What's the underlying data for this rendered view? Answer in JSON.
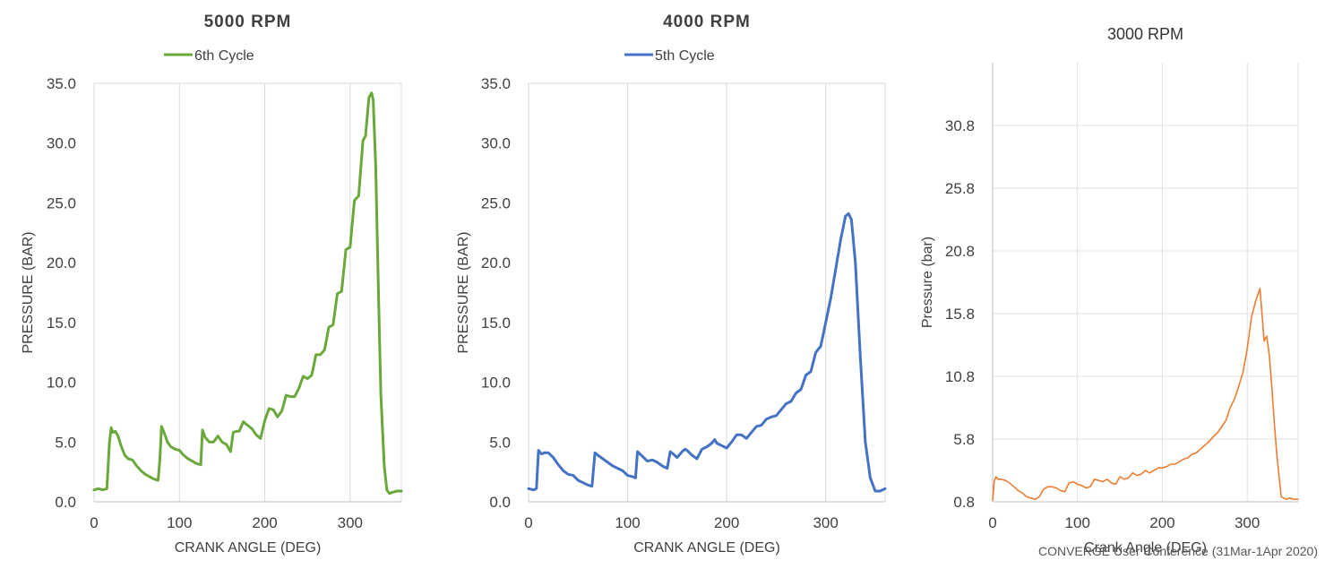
{
  "chart_data": [
    {
      "type": "line",
      "title": "5000 RPM",
      "xlabel": "CRANK ANGLE (DEG)",
      "ylabel": "PRESSURE (BAR)",
      "xlim": [
        0,
        360
      ],
      "ylim": [
        0,
        35
      ],
      "xticks": [
        0,
        100,
        200,
        300
      ],
      "xtick_labels": [
        "0",
        "100",
        "200",
        "300"
      ],
      "yticks": [
        0,
        5,
        10,
        15,
        20,
        25,
        30,
        35
      ],
      "ytick_labels": [
        "0.0",
        "5.0",
        "10.0",
        "15.0",
        "20.0",
        "25.0",
        "30.0",
        "35.0"
      ],
      "grid": "vertical",
      "legend": "top-center",
      "series": [
        {
          "name": "6th Cycle",
          "color": "#6aa83c",
          "x": [
            0,
            5,
            10,
            15,
            18,
            20,
            22,
            25,
            28,
            32,
            36,
            40,
            45,
            50,
            55,
            60,
            65,
            70,
            75,
            77,
            79,
            82,
            86,
            90,
            95,
            100,
            105,
            110,
            115,
            120,
            125,
            127,
            130,
            135,
            140,
            145,
            150,
            155,
            160,
            163,
            167,
            170,
            175,
            178,
            180,
            185,
            190,
            195,
            200,
            205,
            210,
            215,
            220,
            225,
            230,
            235,
            240,
            245,
            250,
            255,
            260,
            265,
            270,
            275,
            280,
            285,
            290,
            295,
            300,
            305,
            310,
            315,
            318,
            322,
            325,
            327,
            330,
            333,
            336,
            340,
            343,
            346,
            350,
            355,
            360
          ],
          "y": [
            1.0,
            1.1,
            1.0,
            1.1,
            5.0,
            6.2,
            5.8,
            5.9,
            5.5,
            4.6,
            3.9,
            3.6,
            3.5,
            3.0,
            2.6,
            2.3,
            2.1,
            1.9,
            1.8,
            3.5,
            6.3,
            5.8,
            5.0,
            4.6,
            4.4,
            4.3,
            3.9,
            3.6,
            3.4,
            3.2,
            3.1,
            6.0,
            5.4,
            5.0,
            5.0,
            5.5,
            5.0,
            4.8,
            4.2,
            5.8,
            5.9,
            5.9,
            6.7,
            6.5,
            6.4,
            6.1,
            5.6,
            5.3,
            6.8,
            7.8,
            7.7,
            7.1,
            7.6,
            8.9,
            8.8,
            8.8,
            9.5,
            10.5,
            10.3,
            10.6,
            12.3,
            12.3,
            12.7,
            14.6,
            14.8,
            17.4,
            17.6,
            21.1,
            21.3,
            25.2,
            25.6,
            30.2,
            30.6,
            33.8,
            34.2,
            33.6,
            28.0,
            18.0,
            9.0,
            3.0,
            1.0,
            0.7,
            0.8,
            0.9,
            0.9
          ]
        }
      ]
    },
    {
      "type": "line",
      "title": "4000 RPM",
      "xlabel": "CRANK ANGLE (DEG)",
      "ylabel": "PRESSURE (BAR)",
      "xlim": [
        0,
        360
      ],
      "ylim": [
        0,
        35
      ],
      "xticks": [
        0,
        100,
        200,
        300
      ],
      "xtick_labels": [
        "0",
        "100",
        "200",
        "300"
      ],
      "yticks": [
        0,
        5,
        10,
        15,
        20,
        25,
        30,
        35
      ],
      "ytick_labels": [
        "0.0",
        "5.0",
        "10.0",
        "15.0",
        "20.0",
        "25.0",
        "30.0",
        "35.0"
      ],
      "grid": "vertical",
      "legend": "top-center",
      "series": [
        {
          "name": "5th Cycle",
          "color": "#4472c4",
          "x": [
            0,
            5,
            8,
            10,
            13,
            16,
            20,
            25,
            30,
            35,
            40,
            45,
            50,
            55,
            60,
            64,
            67,
            70,
            75,
            80,
            85,
            90,
            95,
            100,
            105,
            108,
            110,
            115,
            120,
            125,
            130,
            135,
            140,
            143,
            146,
            150,
            155,
            158,
            160,
            165,
            170,
            175,
            180,
            185,
            188,
            190,
            195,
            200,
            205,
            210,
            215,
            220,
            225,
            230,
            235,
            240,
            245,
            250,
            255,
            260,
            265,
            270,
            275,
            280,
            285,
            290,
            295,
            300,
            305,
            310,
            315,
            320,
            323,
            326,
            330,
            335,
            340,
            345,
            350,
            355,
            360
          ],
          "y": [
            1.1,
            1.0,
            1.1,
            4.3,
            4.0,
            4.1,
            4.1,
            3.7,
            3.1,
            2.6,
            2.3,
            2.2,
            1.8,
            1.6,
            1.4,
            1.3,
            4.1,
            3.9,
            3.6,
            3.3,
            3.0,
            2.8,
            2.6,
            2.2,
            2.1,
            2.0,
            4.2,
            3.8,
            3.4,
            3.5,
            3.3,
            3.0,
            2.8,
            4.2,
            4.0,
            3.7,
            4.2,
            4.4,
            4.3,
            3.9,
            3.6,
            4.4,
            4.6,
            4.9,
            5.2,
            4.9,
            4.7,
            4.5,
            5.0,
            5.6,
            5.6,
            5.3,
            5.8,
            6.3,
            6.4,
            6.9,
            7.1,
            7.2,
            7.7,
            8.2,
            8.4,
            9.1,
            9.4,
            10.6,
            10.9,
            12.5,
            13.0,
            15.0,
            17.0,
            19.4,
            21.9,
            23.9,
            24.1,
            23.6,
            20.0,
            12.0,
            5.0,
            2.0,
            0.9,
            0.9,
            1.1
          ]
        }
      ]
    },
    {
      "type": "line",
      "title": "3000 RPM",
      "xlabel": "Crank Angle (DEG)",
      "ylabel": "Pressure (bar)",
      "xlim": [
        0,
        360
      ],
      "ylim": [
        0.8,
        35.8
      ],
      "xticks": [
        0,
        100,
        200,
        300
      ],
      "xtick_labels": [
        "0",
        "100",
        "200",
        "300"
      ],
      "yticks": [
        0.8,
        5.8,
        10.8,
        15.8,
        20.8,
        25.8,
        30.8
      ],
      "ytick_labels": [
        "0.8",
        "5.8",
        "10.8",
        "15.8",
        "20.8",
        "25.8",
        "30.8"
      ],
      "grid": "both",
      "series": [
        {
          "color": "#ed7d31",
          "x": [
            0,
            2,
            4,
            6,
            10,
            15,
            20,
            25,
            30,
            35,
            40,
            45,
            50,
            55,
            60,
            65,
            70,
            75,
            80,
            85,
            90,
            95,
            100,
            105,
            110,
            115,
            120,
            125,
            130,
            135,
            140,
            145,
            150,
            155,
            160,
            165,
            170,
            175,
            180,
            185,
            190,
            195,
            200,
            205,
            210,
            215,
            220,
            225,
            230,
            235,
            240,
            245,
            250,
            255,
            260,
            265,
            270,
            275,
            280,
            285,
            290,
            295,
            300,
            305,
            310,
            315,
            320,
            323,
            326,
            329,
            332,
            335,
            338,
            340,
            343,
            346,
            350,
            355,
            360
          ],
          "y": [
            0.9,
            2.5,
            2.8,
            2.6,
            2.6,
            2.5,
            2.3,
            2.0,
            1.7,
            1.5,
            1.2,
            1.1,
            1.0,
            1.2,
            1.8,
            2.0,
            2.0,
            1.9,
            1.7,
            1.6,
            2.3,
            2.4,
            2.2,
            2.1,
            1.9,
            2.0,
            2.6,
            2.5,
            2.4,
            2.6,
            2.3,
            2.2,
            2.8,
            2.6,
            2.7,
            3.1,
            2.9,
            3.0,
            3.3,
            3.1,
            3.3,
            3.5,
            3.5,
            3.6,
            3.8,
            3.8,
            4.0,
            4.2,
            4.3,
            4.6,
            4.7,
            5.0,
            5.3,
            5.6,
            6.0,
            6.3,
            6.8,
            7.3,
            8.3,
            9.0,
            10.0,
            11.1,
            13.0,
            15.5,
            16.8,
            17.8,
            13.6,
            14.0,
            12.5,
            10.0,
            7.0,
            4.5,
            2.5,
            1.2,
            1.1,
            1.0,
            1.1,
            1.0,
            1.0
          ]
        }
      ]
    }
  ],
  "footer": "CONVERGE User Conference (31Mar-1Apr 2020)"
}
